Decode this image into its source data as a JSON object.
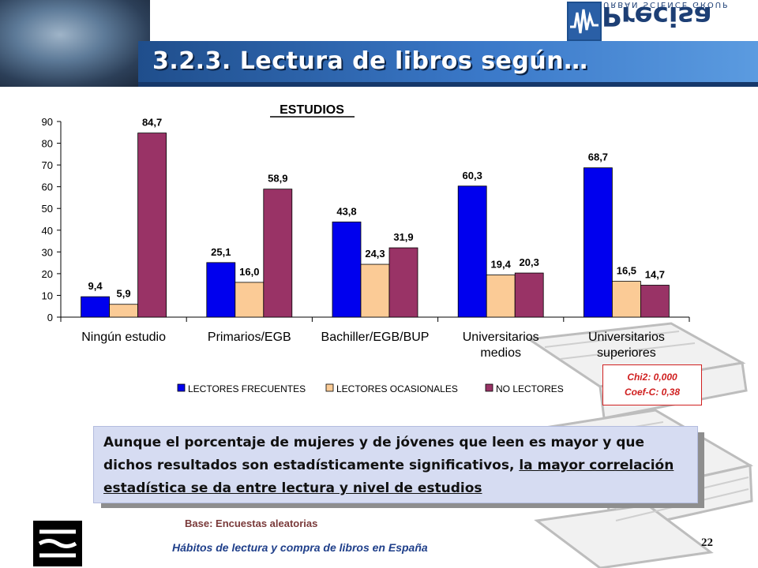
{
  "slide": {
    "title": "3.2.3. Lectura de libros según…",
    "logo_text": "Precisa",
    "logo_subtext": "URBAN SCIENCE GROUP",
    "page_number": "22",
    "footer": "Hábitos de lectura y compra de libros en España",
    "base_note": "Base: Encuestas aleatorias"
  },
  "stats": {
    "chi2": "Chi2: 0,000",
    "coef": "Coef-C: 0,38",
    "color": "#d02020"
  },
  "note": {
    "text_plain": "Aunque el porcentaje de mujeres y de jóvenes que leen es mayor y que dichos resultados son estadísticamente significativos, ",
    "text_underlined": "la mayor correlación estadística se da entre lectura y nivel de estudios"
  },
  "chart_data": {
    "type": "bar",
    "title": "ESTUDIOS",
    "categories": [
      [
        "Ningún estudio"
      ],
      [
        "Primarios/EGB"
      ],
      [
        "Bachiller/EGB/BUP"
      ],
      [
        "Universitarios",
        "medios"
      ],
      [
        "Universitarios",
        "superiores"
      ]
    ],
    "series": [
      {
        "name": "LECTORES FRECUENTES",
        "color": "#0000ee",
        "values": [
          9.4,
          25.1,
          43.8,
          60.3,
          68.7
        ],
        "labels": [
          "9,4",
          "25,1",
          "43,8",
          "60,3",
          "68,7"
        ]
      },
      {
        "name": "LECTORES OCASIONALES",
        "color": "#fbcb96",
        "values": [
          5.9,
          16.0,
          24.3,
          19.4,
          16.5
        ],
        "labels": [
          "5,9",
          "16,0",
          "24,3",
          "19,4",
          "16,5"
        ]
      },
      {
        "name": "NO LECTORES",
        "color": "#993366",
        "values": [
          84.7,
          58.9,
          31.9,
          20.3,
          14.7
        ],
        "labels": [
          "84,7",
          "58,9",
          "31,9",
          "20,3",
          "14,7"
        ]
      }
    ],
    "ylim": [
      0,
      90
    ],
    "yticks": [
      0,
      10,
      20,
      30,
      40,
      50,
      60,
      70,
      80,
      90
    ],
    "legend_position": "bottom",
    "grid": false
  }
}
